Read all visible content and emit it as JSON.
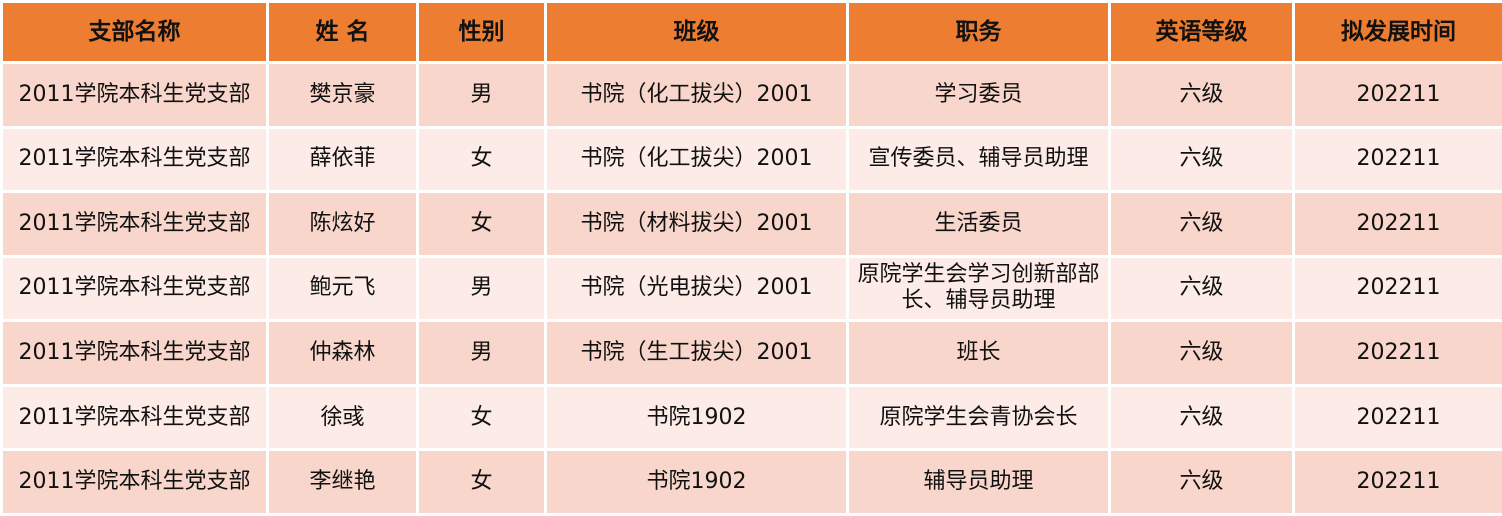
{
  "headers": [
    "支部名称",
    "姓 名",
    "性别",
    "班级",
    "职务",
    "英语等级",
    "拟发展时间"
  ],
  "colors": {
    "header_bg": "#ed7d31",
    "row_odd_bg": "#f8d6cb",
    "row_even_bg": "#fcebe6"
  },
  "rows": [
    [
      "2011学院本科生党支部",
      "樊京豪",
      "男",
      "书院（化工拔尖）2001",
      "学习委员",
      "六级",
      "202211"
    ],
    [
      "2011学院本科生党支部",
      "薛依菲",
      "女",
      "书院（化工拔尖）2001",
      "宣传委员、辅导员助理",
      "六级",
      "202211"
    ],
    [
      "2011学院本科生党支部",
      "陈炫好",
      "女",
      "书院（材料拔尖）2001",
      "生活委员",
      "六级",
      "202211"
    ],
    [
      "2011学院本科生党支部",
      "鲍元飞",
      "男",
      "书院（光电拔尖）2001",
      "原院学生会学习创新部部长、辅导员助理",
      "六级",
      "202211"
    ],
    [
      "2011学院本科生党支部",
      "仲森林",
      "男",
      "书院（生工拔尖）2001",
      "班长",
      "六级",
      "202211"
    ],
    [
      "2011学院本科生党支部",
      "徐彧",
      "女",
      "书院1902",
      "原院学生会青协会长",
      "六级",
      "202211"
    ],
    [
      "2011学院本科生党支部",
      "李继艳",
      "女",
      "书院1902",
      "辅导员助理",
      "六级",
      "202211"
    ]
  ]
}
